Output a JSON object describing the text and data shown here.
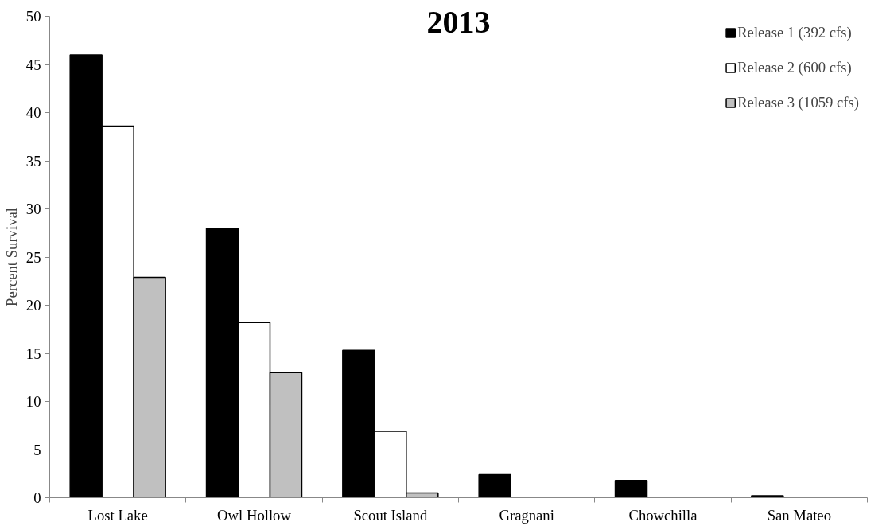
{
  "chart_data": {
    "type": "bar",
    "title": "2013",
    "ylabel": "Percent Survival",
    "categories": [
      "Lost Lake",
      "Owl Hollow",
      "Scout Island",
      "Gragnani",
      "Chowchilla",
      "San Mateo"
    ],
    "series": [
      {
        "name": "Release 1 (392 cfs)",
        "color": "#000000",
        "values": [
          46,
          28,
          15.3,
          2.4,
          1.8,
          0.2
        ]
      },
      {
        "name": "Release 2 (600 cfs)",
        "color": "#ffffff",
        "values": [
          38.6,
          18.2,
          6.9,
          null,
          null,
          null
        ]
      },
      {
        "name": "Release 3 (1059 cfs)",
        "color": "#c0c0c0",
        "values": [
          22.9,
          13.0,
          0.5,
          null,
          null,
          null
        ]
      }
    ],
    "ylim": [
      0,
      50
    ],
    "yticks": [
      0,
      5,
      10,
      15,
      20,
      25,
      30,
      35,
      40,
      45,
      50
    ],
    "grid": false,
    "legend": "top right"
  }
}
